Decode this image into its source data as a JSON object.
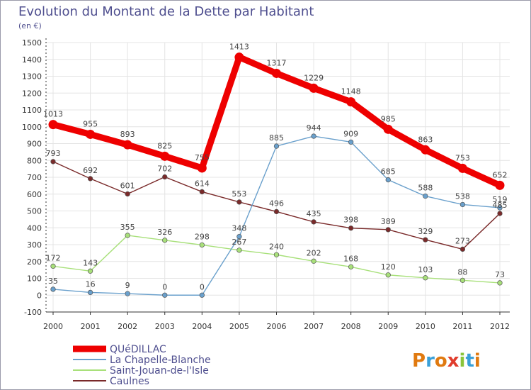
{
  "title": "Evolution du Montant de la Dette par Habitant",
  "subtitle": "(en €)",
  "logo": "Proxiti",
  "colors": {
    "border": "#9a9aaa",
    "grid": "#e4e4e4",
    "axis": "#333333",
    "title": "#4f4f8f"
  },
  "chart_data": {
    "type": "line",
    "title": "Evolution du Montant de la Dette par Habitant",
    "subtitle": "(en €)",
    "xlabel": "",
    "ylabel": "",
    "ylim": [
      -100,
      1500
    ],
    "yticks": [
      -100,
      0,
      100,
      200,
      300,
      400,
      500,
      600,
      700,
      800,
      900,
      1000,
      1100,
      1200,
      1300,
      1400,
      1500
    ],
    "grid": true,
    "legend": "bottom-left",
    "categories": [
      "2000",
      "2001",
      "2002",
      "2003",
      "2004",
      "2005",
      "2006",
      "2007",
      "2008",
      "2009",
      "2010",
      "2011",
      "2012"
    ],
    "series": [
      {
        "name": "Caulnes",
        "color": "#7a2a2a",
        "values": [
          793,
          692,
          601,
          702,
          614,
          553,
          496,
          435,
          398,
          389,
          329,
          273,
          485
        ],
        "labels": [
          "793",
          "692",
          "601",
          "702",
          "614",
          "553",
          "496",
          "435",
          "398",
          "389",
          "329",
          "273",
          "485"
        ]
      },
      {
        "name": "Saint-Jouan-de-l'Isle",
        "color": "#a8e07a",
        "values": [
          172,
          143,
          355,
          326,
          298,
          267,
          240,
          202,
          168,
          120,
          103,
          88,
          73
        ],
        "labels": [
          "172",
          "143",
          "355",
          "326",
          "298",
          "267",
          "240",
          "202",
          "168",
          "120",
          "103",
          "88",
          "73"
        ]
      },
      {
        "name": "La Chapelle-Blanche",
        "color": "#6aa0cc",
        "values": [
          35,
          16,
          9,
          0,
          0,
          348,
          885,
          944,
          909,
          685,
          588,
          538,
          519
        ],
        "labels": [
          "35",
          "16",
          "9",
          "0",
          "0",
          "348",
          "885",
          "944",
          "909",
          "685",
          "588",
          "538",
          "519"
        ]
      },
      {
        "name": "QUéDILLAC",
        "color": "#ee0000",
        "values": [
          1013,
          955,
          893,
          825,
          755,
          1413,
          1317,
          1229,
          1148,
          985,
          863,
          753,
          652
        ],
        "labels": [
          "1013",
          "955",
          "893",
          "825",
          "755",
          "1413",
          "1317",
          "1229",
          "1148",
          "985",
          "863",
          "753",
          "652"
        ]
      }
    ],
    "legend_order": [
      "QUéDILLAC",
      "La Chapelle-Blanche",
      "Saint-Jouan-de-l'Isle",
      "Caulnes"
    ]
  }
}
